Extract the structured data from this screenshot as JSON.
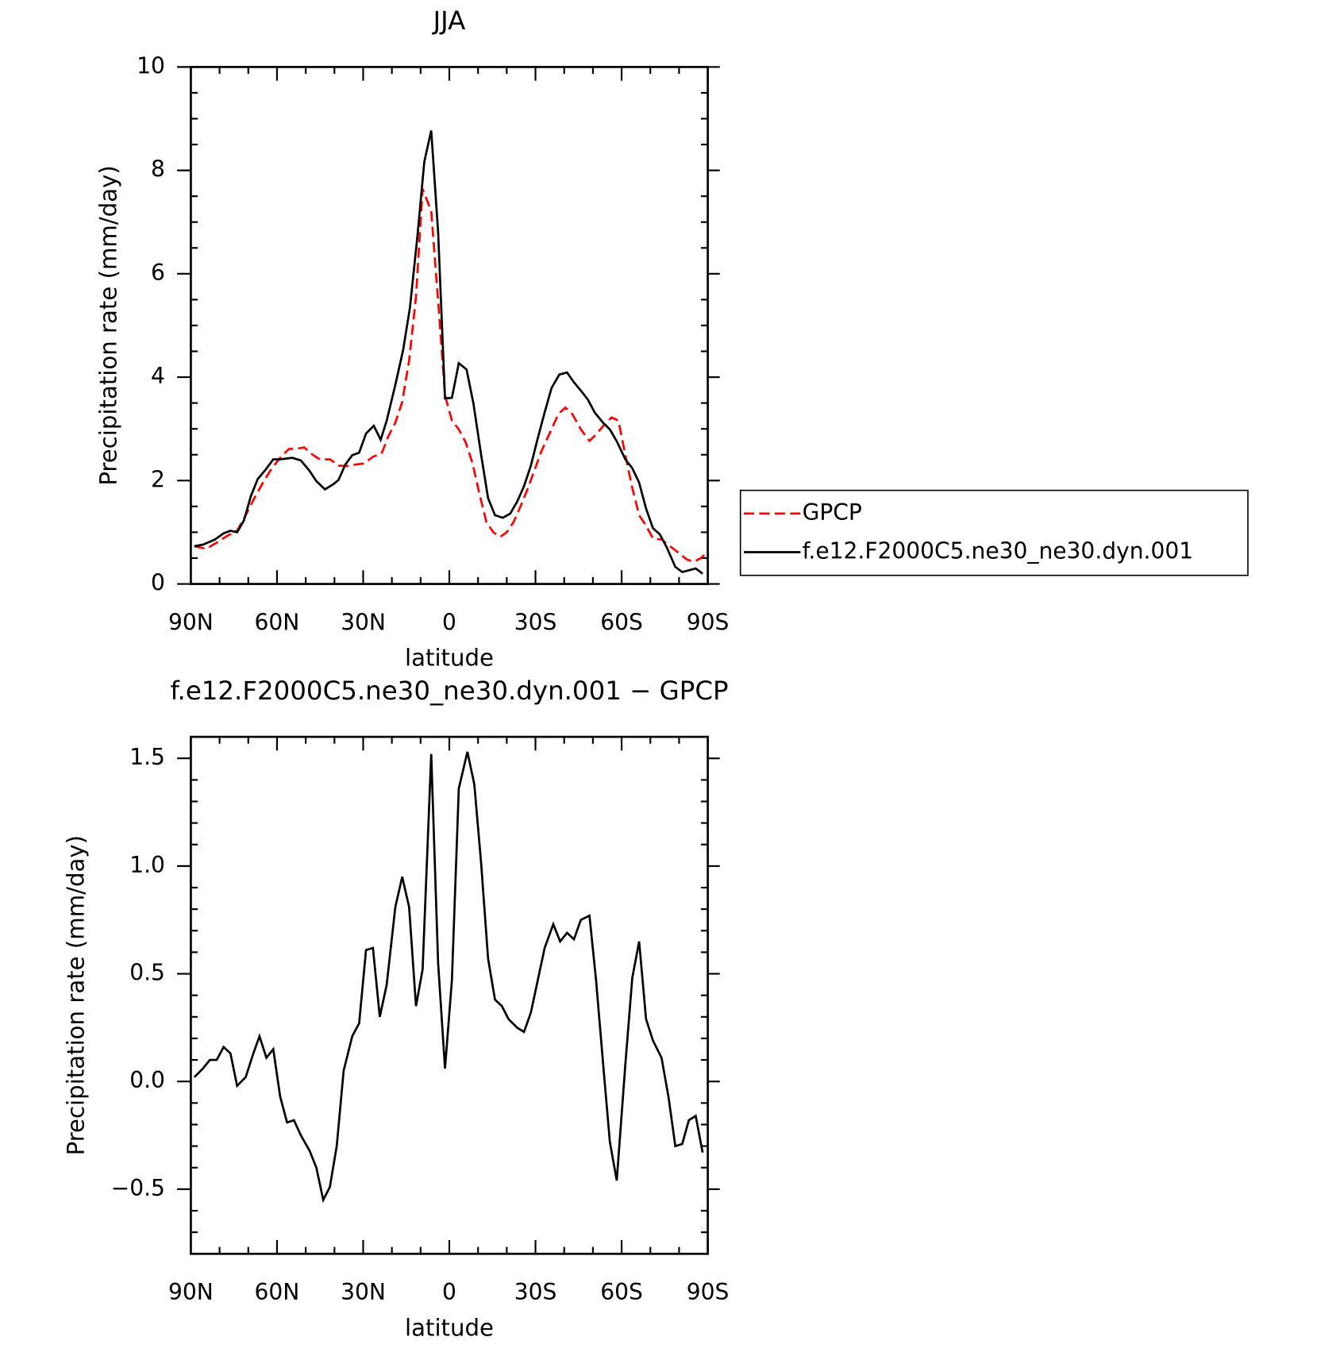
{
  "chart_data": [
    {
      "type": "line",
      "title": "JJA",
      "xlabel": "latitude",
      "ylabel": "Precipitation rate (mm/day)",
      "xlim": [
        90,
        -90
      ],
      "xticks": [
        {
          "value": 90,
          "label": "90N"
        },
        {
          "value": 60,
          "label": "60N"
        },
        {
          "value": 30,
          "label": "30N"
        },
        0,
        {
          "value": -30,
          "label": "30S"
        },
        {
          "value": -60,
          "label": "60S"
        },
        {
          "value": -90,
          "label": "90S"
        }
      ],
      "xminorticks": [
        80,
        70,
        50,
        40,
        20,
        10,
        -10,
        -20,
        -40,
        -50,
        -70,
        -80
      ],
      "ylim": [
        0,
        10
      ],
      "yticks": [
        0,
        2,
        4,
        6,
        8,
        10
      ],
      "yminorticks": [
        0.5,
        1,
        1.5,
        2.5,
        3,
        3.5,
        4.5,
        5,
        5.5,
        6.5,
        7,
        7.5,
        8.5,
        9,
        9.5
      ],
      "legend": "right",
      "series": [
        {
          "name": "GPCP",
          "color": "#ff0000",
          "dashed": true,
          "x": [
            88.8,
            84.6,
            81.0,
            77.4,
            73.9,
            70.9,
            67.9,
            64.9,
            61.9,
            58.9,
            55.9,
            52.9,
            50.5,
            48.1,
            45.1,
            41.5,
            38.6,
            35.6,
            32.6,
            29.6,
            26.6,
            23.6,
            21.2,
            18.8,
            16.4,
            14.0,
            11.6,
            9.3,
            6.3,
            3.9,
            1.5,
            -0.9,
            -3.3,
            -5.7,
            -8.1,
            -10.5,
            -12.9,
            -15.3,
            -17.7,
            -20.0,
            -22.4,
            -24.8,
            -27.2,
            -29.6,
            -32.0,
            -35.0,
            -38.0,
            -40.4,
            -42.8,
            -45.8,
            -48.8,
            -51.1,
            -54.1,
            -56.5,
            -58.9,
            -61.3,
            -63.7,
            -66.1,
            -68.5,
            -70.9,
            -73.9,
            -76.9,
            -79.9,
            -82.8,
            -85.2,
            -87.6,
            -88.8
          ],
          "values": [
            0.73,
            0.68,
            0.8,
            0.93,
            1.03,
            1.33,
            1.66,
            1.96,
            2.23,
            2.44,
            2.61,
            2.62,
            2.64,
            2.52,
            2.41,
            2.41,
            2.29,
            2.28,
            2.31,
            2.33,
            2.46,
            2.52,
            2.86,
            3.12,
            3.52,
            4.32,
            5.56,
            7.64,
            7.21,
            5.48,
            3.65,
            3.16,
            2.99,
            2.74,
            2.33,
            1.74,
            1.2,
            1.0,
            0.91,
            1.0,
            1.2,
            1.5,
            1.83,
            2.19,
            2.56,
            2.92,
            3.29,
            3.41,
            3.29,
            2.99,
            2.77,
            2.89,
            3.09,
            3.22,
            3.16,
            2.49,
            1.86,
            1.33,
            1.13,
            0.88,
            0.86,
            0.73,
            0.6,
            0.47,
            0.43,
            0.5,
            0.56
          ]
        },
        {
          "name": "f.e12.F2000C5.ne30_ne30.dyn.001",
          "color": "#000000",
          "dashed": false,
          "x": [
            88.8,
            85.8,
            81.6,
            78.6,
            76.2,
            73.9,
            71.5,
            69.1,
            66.7,
            63.7,
            61.3,
            58.9,
            54.7,
            51.7,
            48.7,
            46.3,
            43.3,
            40.4,
            38.6,
            36.2,
            33.8,
            31.4,
            29.0,
            26.3,
            23.9,
            21.8,
            18.8,
            16.1,
            13.7,
            11.1,
            8.7,
            6.3,
            3.9,
            1.5,
            -0.9,
            -3.3,
            -6.0,
            -8.4,
            -11.1,
            -13.5,
            -15.9,
            -18.6,
            -21.2,
            -23.6,
            -26.0,
            -28.4,
            -30.8,
            -33.2,
            -35.6,
            -38.3,
            -41.0,
            -43.4,
            -45.8,
            -48.2,
            -50.6,
            -53.5,
            -55.9,
            -58.3,
            -61.3,
            -63.7,
            -66.1,
            -68.5,
            -70.9,
            -73.3,
            -75.7,
            -78.7,
            -81.1,
            -85.8,
            -88.2
          ],
          "values": [
            0.73,
            0.76,
            0.86,
            0.98,
            1.03,
            1.0,
            1.23,
            1.7,
            2.03,
            2.23,
            2.41,
            2.41,
            2.44,
            2.39,
            2.19,
            1.99,
            1.83,
            1.93,
            2.01,
            2.31,
            2.49,
            2.54,
            2.91,
            3.06,
            2.79,
            3.16,
            3.85,
            4.52,
            5.35,
            6.73,
            8.17,
            8.77,
            6.81,
            3.59,
            3.6,
            4.27,
            4.15,
            3.49,
            2.49,
            1.66,
            1.33,
            1.28,
            1.36,
            1.59,
            1.89,
            2.29,
            2.82,
            3.32,
            3.79,
            4.05,
            4.09,
            3.9,
            3.74,
            3.57,
            3.32,
            3.12,
            2.99,
            2.76,
            2.41,
            2.24,
            1.96,
            1.46,
            1.08,
            0.96,
            0.71,
            0.33,
            0.23,
            0.3,
            0.2
          ]
        }
      ]
    },
    {
      "type": "line",
      "title": "f.e12.F2000C5.ne30_ne30.dyn.001 − GPCP",
      "xlabel": "latitude",
      "ylabel": "Precipitation rate (mm/day)",
      "xlim": [
        90,
        -90
      ],
      "xticks": [
        {
          "value": 90,
          "label": "90N"
        },
        {
          "value": 60,
          "label": "60N"
        },
        {
          "value": 30,
          "label": "30N"
        },
        0,
        {
          "value": -30,
          "label": "30S"
        },
        {
          "value": -60,
          "label": "60S"
        },
        {
          "value": -90,
          "label": "90S"
        }
      ],
      "xminorticks": [
        80,
        70,
        50,
        40,
        20,
        10,
        -10,
        -20,
        -40,
        -50,
        -70,
        -80
      ],
      "ylim": [
        -0.8,
        1.6
      ],
      "yticks": [
        {
          "value": -0.5,
          "label": "−0.5"
        },
        {
          "value": 0,
          "label": "0.0"
        },
        0.5,
        {
          "value": 1,
          "label": "1.0"
        },
        1.5
      ],
      "yminorticks": [
        -0.7,
        -0.6,
        -0.4,
        -0.3,
        -0.2,
        -0.1,
        0.1,
        0.2,
        0.3,
        0.4,
        0.6,
        0.7,
        0.8,
        0.9,
        1.1,
        1.2,
        1.3,
        1.4
      ],
      "series": [
        {
          "color": "#000000",
          "dashed": false,
          "x": [
            88.8,
            85.8,
            83.4,
            81.0,
            78.6,
            76.2,
            73.9,
            70.9,
            68.5,
            66.1,
            63.7,
            61.3,
            58.9,
            56.5,
            54.1,
            51.7,
            48.7,
            46.3,
            43.9,
            41.6,
            39.2,
            36.8,
            33.8,
            31.4,
            29.0,
            26.6,
            24.2,
            21.8,
            18.8,
            16.4,
            14.0,
            11.6,
            9.3,
            6.3,
            3.9,
            1.5,
            -0.9,
            -3.3,
            -6.3,
            -8.7,
            -11.1,
            -13.5,
            -15.9,
            -18.3,
            -20.6,
            -23.6,
            -26.0,
            -28.4,
            -30.8,
            -33.2,
            -36.2,
            -38.6,
            -41.0,
            -43.4,
            -45.8,
            -48.8,
            -51.1,
            -53.5,
            -55.9,
            -58.3,
            -61.3,
            -63.7,
            -66.1,
            -68.5,
            -70.9,
            -73.9,
            -76.3,
            -78.7,
            -81.1,
            -83.4,
            -85.8,
            -88.2
          ],
          "values": [
            0.02,
            0.06,
            0.1,
            0.1,
            0.16,
            0.13,
            -0.02,
            0.02,
            0.12,
            0.21,
            0.11,
            0.15,
            -0.07,
            -0.19,
            -0.18,
            -0.25,
            -0.32,
            -0.4,
            -0.55,
            -0.49,
            -0.3,
            0.05,
            0.21,
            0.27,
            0.61,
            0.62,
            0.3,
            0.45,
            0.81,
            0.95,
            0.81,
            0.35,
            0.52,
            1.52,
            0.55,
            0.06,
            0.47,
            1.36,
            1.53,
            1.38,
            1.01,
            0.57,
            0.38,
            0.35,
            0.29,
            0.25,
            0.23,
            0.32,
            0.47,
            0.62,
            0.73,
            0.65,
            0.69,
            0.66,
            0.75,
            0.77,
            0.47,
            0.09,
            -0.28,
            -0.46,
            0.08,
            0.48,
            0.65,
            0.29,
            0.19,
            0.11,
            -0.07,
            -0.3,
            -0.29,
            -0.18,
            -0.16,
            -0.33
          ]
        }
      ]
    }
  ]
}
